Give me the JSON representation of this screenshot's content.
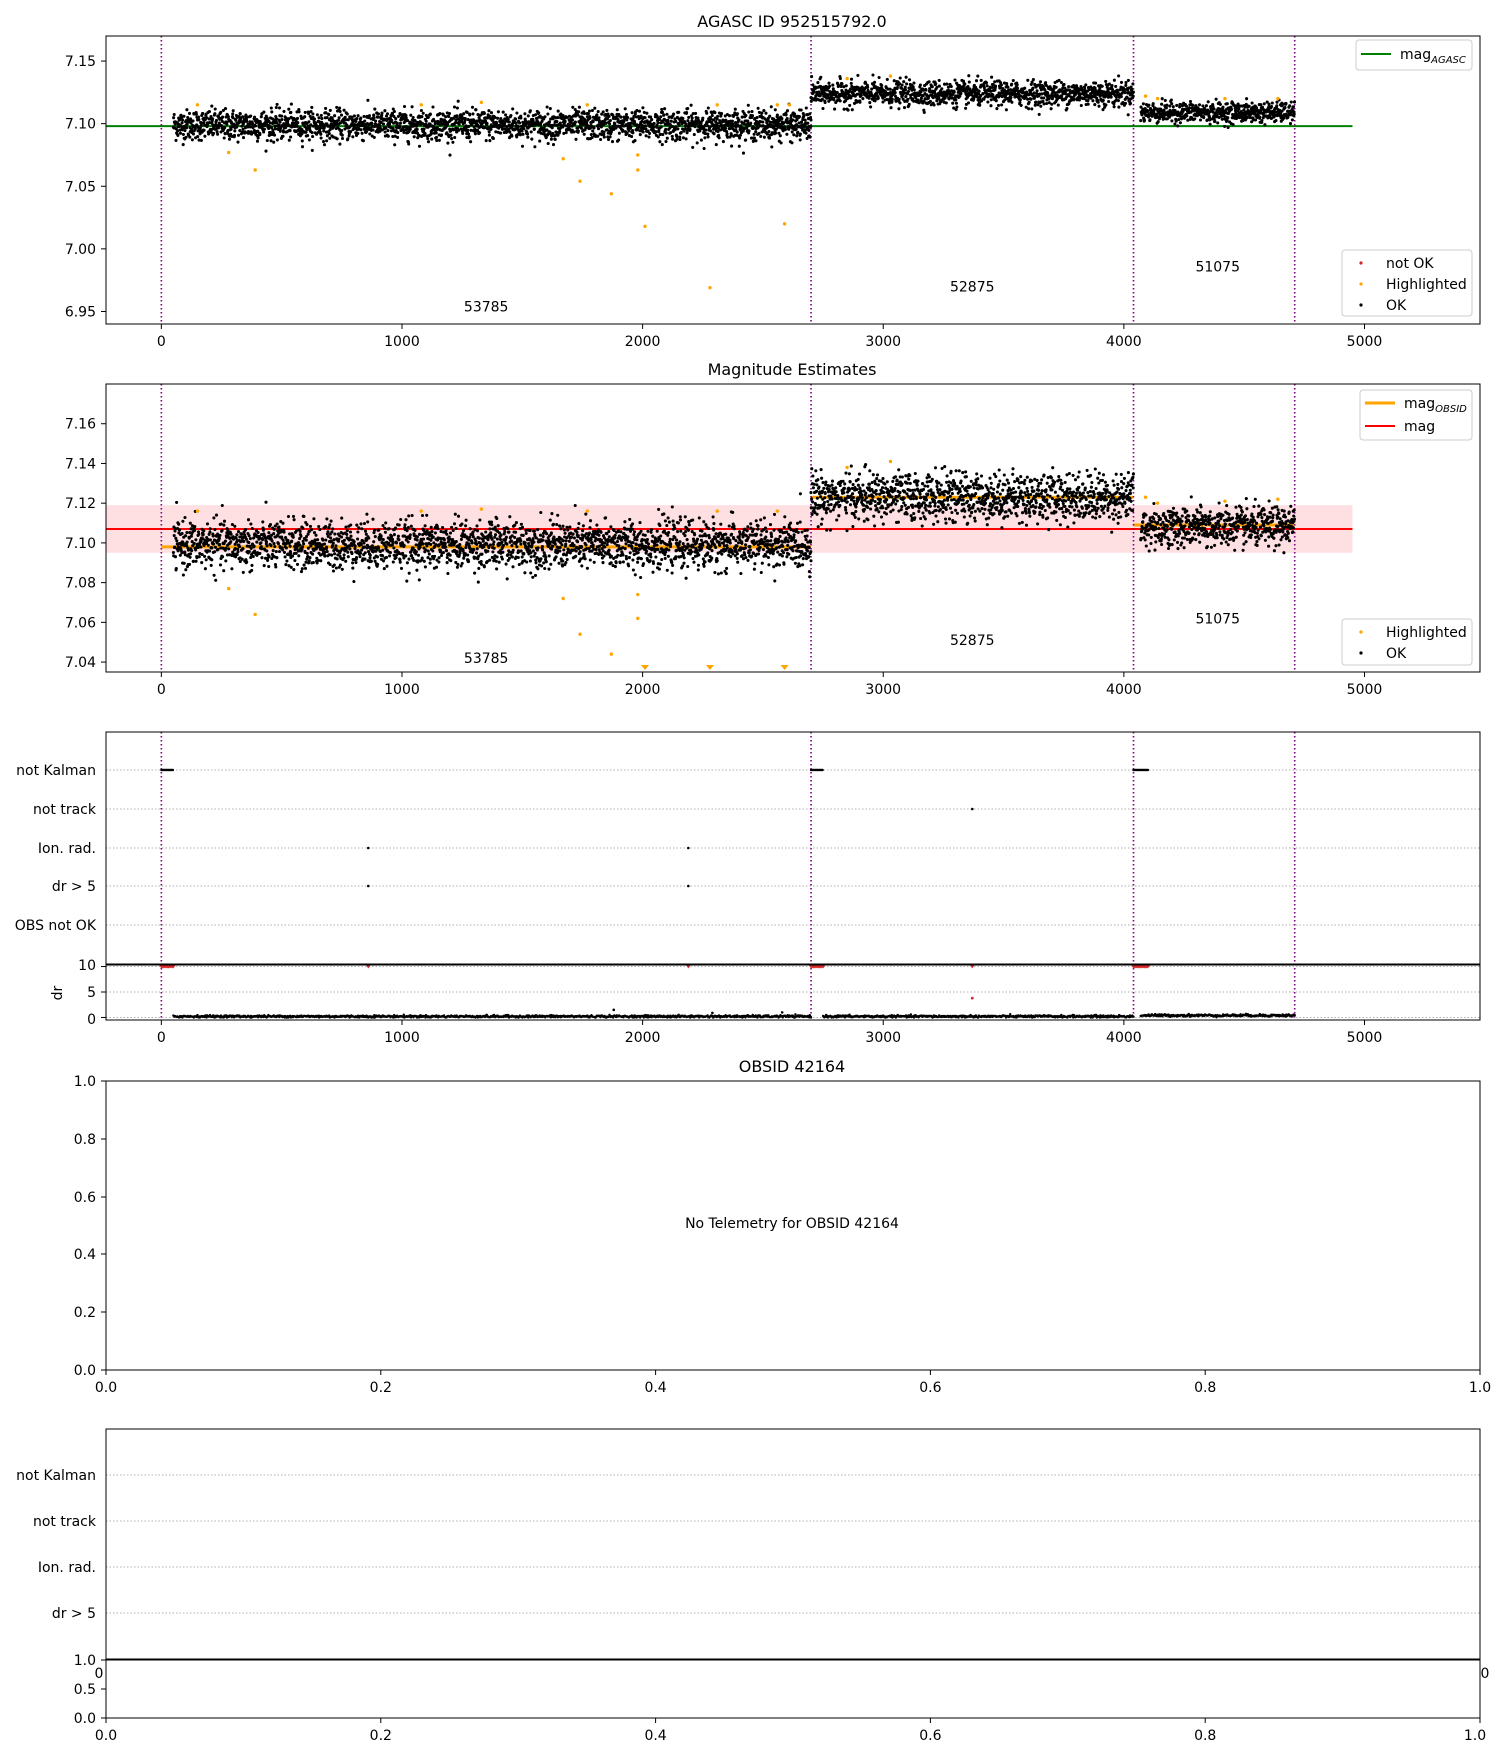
{
  "colors": {
    "ok": "#000000",
    "highlighted": "#ffa500",
    "not_ok": "#d62728",
    "agasc": "#008000",
    "mag_line": "#ff0000",
    "band": "#fdd5da",
    "obsid_line": "#800080",
    "grid": "#b0b0b0"
  },
  "panels": {
    "p1": {
      "title": "AGASC ID 952515792.0",
      "legend_top": [
        "mag_AGASC"
      ],
      "legend_bottom": [
        "not OK",
        "Highlighted",
        "OK"
      ],
      "legend_top_main": "mag",
      "legend_top_sub": "AGASC"
    },
    "p2": {
      "title": "Magnitude Estimates",
      "legend_top_1_main": "mag",
      "legend_top_1_sub": "OBSID",
      "legend_top_2": "mag",
      "legend_bottom": [
        "Highlighted",
        "OK"
      ]
    },
    "p3": {
      "flag_labels": [
        "not Kalman",
        "not track",
        "Ion. rad.",
        "dr > 5",
        "OBS not OK"
      ],
      "dr_ylabel": "dr",
      "dr_ticks": [
        "0",
        "5",
        "10"
      ]
    },
    "p4": {
      "title": "OBSID 42164",
      "message": "No Telemetry for OBSID 42164",
      "yticks": [
        "0.0",
        "0.2",
        "0.4",
        "0.6",
        "0.8",
        "1.0"
      ],
      "xticks": [
        "0.0",
        "0.2",
        "0.4",
        "0.6",
        "0.8",
        "1.0"
      ]
    },
    "p5": {
      "flag_labels": [
        "not Kalman",
        "not track",
        "Ion. rad.",
        "dr > 5"
      ],
      "yticks": [
        "0.0",
        "0.5",
        "1.0"
      ],
      "xticks": [
        "0.0",
        "0.2",
        "0.4",
        "0.6",
        "0.8",
        "1.0"
      ],
      "partial_left": "0",
      "partial_right": "0"
    }
  },
  "chart_data": [
    {
      "type": "scatter",
      "title": "AGASC ID 952515792.0",
      "xlim": [
        -230,
        5480
      ],
      "ylim": [
        6.94,
        7.17
      ],
      "xticks": [
        0,
        1000,
        2000,
        3000,
        4000,
        5000
      ],
      "yticks": [
        6.95,
        7.0,
        7.05,
        7.1,
        7.15
      ],
      "vlines": [
        0,
        2700,
        4040,
        4710
      ],
      "hlines": [
        {
          "name": "mag_AGASC",
          "y": 7.098,
          "x": [
            -230,
            4950
          ]
        }
      ],
      "segments": [
        {
          "obsid": "53785",
          "x": [
            50,
            2700
          ],
          "y_center": 7.099,
          "y_spread": 0.006,
          "label_x": 1350,
          "label_y": 6.954
        },
        {
          "obsid": "52875",
          "x": [
            2700,
            4040
          ],
          "y_center": 7.124,
          "y_spread": 0.005,
          "label_x": 3370,
          "label_y": 6.97
        },
        {
          "obsid": "51075",
          "x": [
            4070,
            4710
          ],
          "y_center": 7.109,
          "y_spread": 0.004,
          "label_x": 4390,
          "label_y": 6.986
        }
      ],
      "highlighted": [
        [
          150,
          7.115
        ],
        [
          280,
          7.077
        ],
        [
          390,
          7.063
        ],
        [
          1080,
          7.115
        ],
        [
          1330,
          7.117
        ],
        [
          1670,
          7.072
        ],
        [
          1740,
          7.054
        ],
        [
          1770,
          7.115
        ],
        [
          1870,
          7.044
        ],
        [
          1980,
          7.063
        ],
        [
          1980,
          7.075
        ],
        [
          2010,
          7.018
        ],
        [
          2280,
          6.969
        ],
        [
          2310,
          7.115
        ],
        [
          2560,
          7.115
        ],
        [
          2590,
          7.02
        ],
        [
          2610,
          7.115
        ],
        [
          2850,
          7.136
        ],
        [
          3030,
          7.138
        ],
        [
          4090,
          7.122
        ],
        [
          4140,
          7.12
        ],
        [
          4420,
          7.12
        ],
        [
          4640,
          7.12
        ]
      ],
      "legend": [
        "mag_AGASC",
        "not OK",
        "Highlighted",
        "OK"
      ]
    },
    {
      "type": "scatter",
      "title": "Magnitude Estimates",
      "xlim": [
        -230,
        5480
      ],
      "ylim": [
        7.035,
        7.18
      ],
      "xticks": [
        0,
        1000,
        2000,
        3000,
        4000,
        5000
      ],
      "yticks": [
        7.04,
        7.06,
        7.08,
        7.1,
        7.12,
        7.14,
        7.16
      ],
      "vlines": [
        0,
        2700,
        4040,
        4710
      ],
      "mag": 7.107,
      "mag_band": [
        7.095,
        7.119
      ],
      "mag_band_x": [
        -230,
        4950
      ],
      "mag_obsid": [
        {
          "obsid": "53785",
          "x": [
            0,
            2700
          ],
          "y": 7.098
        },
        {
          "obsid": "52875",
          "x": [
            2700,
            4040
          ],
          "y": 7.123
        },
        {
          "obsid": "51075",
          "x": [
            4040,
            4710
          ],
          "y": 7.109
        }
      ],
      "segments": [
        {
          "obsid": "53785",
          "x": [
            50,
            2700
          ],
          "y_center": 7.099,
          "y_spread": 0.006,
          "label_x": 1350,
          "label_y": 7.042
        },
        {
          "obsid": "52875",
          "x": [
            2700,
            4040
          ],
          "y_center": 7.123,
          "y_spread": 0.006,
          "label_x": 3370,
          "label_y": 7.051
        },
        {
          "obsid": "51075",
          "x": [
            4070,
            4710
          ],
          "y_center": 7.108,
          "y_spread": 0.005,
          "label_x": 4390,
          "label_y": 7.062
        }
      ],
      "highlighted": [
        [
          150,
          7.116
        ],
        [
          280,
          7.077
        ],
        [
          390,
          7.064
        ],
        [
          1080,
          7.116
        ],
        [
          1330,
          7.117
        ],
        [
          1670,
          7.072
        ],
        [
          1740,
          7.054
        ],
        [
          1770,
          7.116
        ],
        [
          1870,
          7.044
        ],
        [
          1980,
          7.062
        ],
        [
          1980,
          7.074
        ],
        [
          2310,
          7.116
        ],
        [
          2560,
          7.116
        ],
        [
          2850,
          7.138
        ],
        [
          3030,
          7.141
        ],
        [
          4090,
          7.123
        ],
        [
          4140,
          7.12
        ],
        [
          4420,
          7.121
        ],
        [
          4640,
          7.122
        ]
      ],
      "clipped_highlighted_x": [
        2010,
        2280,
        2590
      ],
      "legend": [
        "mag_OBSID",
        "mag",
        "Highlighted",
        "OK"
      ]
    },
    {
      "type": "scatter",
      "title": "",
      "xlim": [
        -230,
        5480
      ],
      "xticks": [
        0,
        1000,
        2000,
        3000,
        4000,
        5000
      ],
      "vlines": [
        0,
        2700,
        4040,
        4710
      ],
      "categories": [
        "not Kalman",
        "not track",
        "Ion. rad.",
        "dr > 5",
        "OBS not OK"
      ],
      "flags": {
        "not Kalman": [
          [
            0,
            50
          ],
          [
            2700,
            2750
          ],
          [
            4040,
            4100
          ]
        ],
        "not track": [
          3370
        ],
        "Ion. rad.": [
          860,
          2190
        ],
        "dr > 5": [
          860,
          2190
        ]
      },
      "dr": {
        "ylim": [
          -0.5,
          10.5
        ],
        "yticks": [
          0,
          5,
          10
        ],
        "ylabel": "dr",
        "clipped_red_x": [
          [
            0,
            50
          ],
          860,
          2190,
          [
            2700,
            2750
          ],
          3370,
          [
            4040,
            4100
          ]
        ],
        "red_points": [
          [
            3370,
            3.8
          ]
        ],
        "black_points": [
          [
            1880,
            1.5
          ],
          [
            2290,
            0.9
          ],
          [
            2580,
            1.0
          ]
        ],
        "baseline_segments": [
          {
            "x": [
              50,
              2700
            ],
            "y": 0.2
          },
          {
            "x": [
              2750,
              4040
            ],
            "y": 0.2
          },
          {
            "x": [
              4070,
              4710
            ],
            "y": 0.4
          }
        ]
      }
    },
    {
      "type": "scatter",
      "title": "OBSID 42164",
      "xlim": [
        0,
        1
      ],
      "ylim": [
        0,
        1
      ],
      "xticks": [
        0.0,
        0.2,
        0.4,
        0.6,
        0.8,
        1.0
      ],
      "yticks": [
        0.0,
        0.2,
        0.4,
        0.6,
        0.8,
        1.0
      ],
      "annotation": "No Telemetry for OBSID 42164"
    },
    {
      "type": "scatter",
      "title": "",
      "categories": [
        "not Kalman",
        "not track",
        "Ion. rad.",
        "dr > 5"
      ],
      "xlim": [
        0,
        1
      ],
      "ylim": [
        0,
        1
      ],
      "xticks": [
        0.0,
        0.2,
        0.4,
        0.6,
        0.8,
        1.0
      ],
      "yticks": [
        0.0,
        0.5,
        1.0
      ]
    }
  ]
}
